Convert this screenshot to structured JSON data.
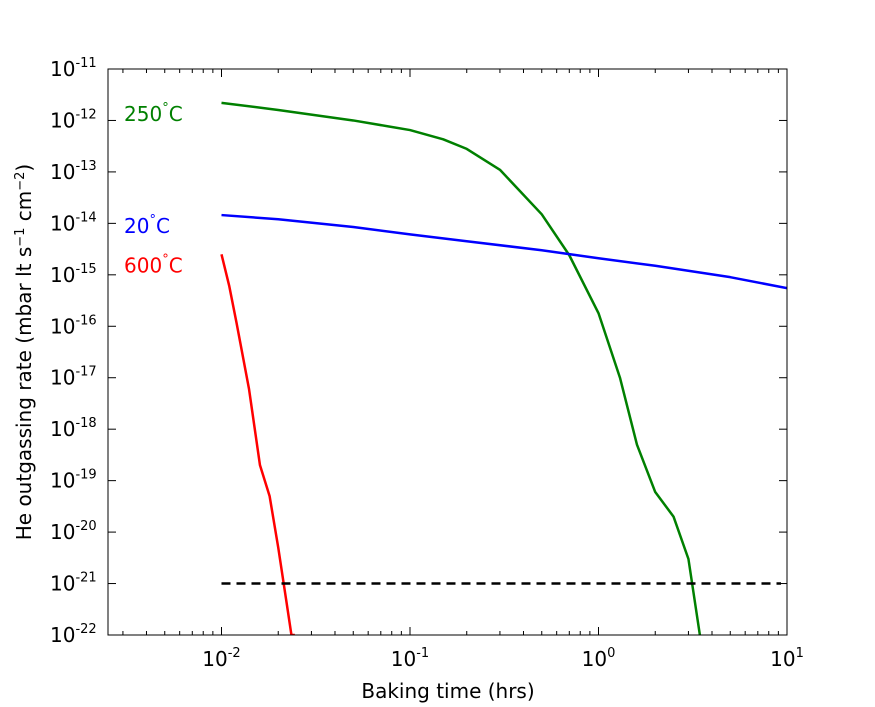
{
  "chart_data": {
    "type": "line",
    "xlabel": "Baking time (hrs)",
    "ylabel_main": "He outgassing rate (mbar lt s",
    "ylabel_sup1": "−1",
    "ylabel_mid": " cm",
    "ylabel_sup2": "−2",
    "ylabel_end": ")",
    "x_scale": "log",
    "y_scale": "log",
    "xlim": [
      0.0025,
      10
    ],
    "ylim": [
      1e-22,
      1e-11
    ],
    "grid": false,
    "x_ticks": [
      {
        "base": "10",
        "exp": "-2",
        "value": 0.01
      },
      {
        "base": "10",
        "exp": "-1",
        "value": 0.1
      },
      {
        "base": "10",
        "exp": "0",
        "value": 1
      },
      {
        "base": "10",
        "exp": "1",
        "value": 10
      }
    ],
    "y_ticks": [
      {
        "base": "10",
        "exp": "-11",
        "value": 1e-11
      },
      {
        "base": "10",
        "exp": "-12",
        "value": 1e-12
      },
      {
        "base": "10",
        "exp": "-13",
        "value": 1e-13
      },
      {
        "base": "10",
        "exp": "-14",
        "value": 1e-14
      },
      {
        "base": "10",
        "exp": "-15",
        "value": 1e-15
      },
      {
        "base": "10",
        "exp": "-16",
        "value": 1e-16
      },
      {
        "base": "10",
        "exp": "-17",
        "value": 1e-17
      },
      {
        "base": "10",
        "exp": "-18",
        "value": 1e-18
      },
      {
        "base": "10",
        "exp": "-19",
        "value": 1e-19
      },
      {
        "base": "10",
        "exp": "-20",
        "value": 1e-20
      },
      {
        "base": "10",
        "exp": "-21",
        "value": 1e-21
      },
      {
        "base": "10",
        "exp": "-22",
        "value": 1e-22
      }
    ],
    "series": [
      {
        "name": "250°C",
        "color": "#008000",
        "x": [
          0.01,
          0.02,
          0.05,
          0.1,
          0.15,
          0.2,
          0.3,
          0.5,
          0.7,
          1.0,
          1.3,
          1.6,
          2.0,
          2.5,
          3.0,
          3.45
        ],
        "y": [
          2.2e-12,
          1.6e-12,
          1e-12,
          6.5e-13,
          4.3e-13,
          2.8e-13,
          1.1e-13,
          1.5e-14,
          2.4e-15,
          1.8e-16,
          1e-17,
          5e-19,
          6e-20,
          2e-20,
          3e-21,
          1e-22
        ]
      },
      {
        "name": "20°C",
        "color": "#0000ff",
        "x": [
          0.01,
          0.02,
          0.05,
          0.1,
          0.2,
          0.5,
          1,
          2,
          5,
          10
        ],
        "y": [
          1.45e-14,
          1.2e-14,
          8.5e-15,
          6.1e-15,
          4.5e-15,
          3e-15,
          2.1e-15,
          1.5e-15,
          9e-16,
          5.5e-16
        ]
      },
      {
        "name": "600°C",
        "color": "#ff0000",
        "x": [
          0.01,
          0.011,
          0.012,
          0.014,
          0.016,
          0.018,
          0.02,
          0.022,
          0.0235,
          0.0245
        ],
        "y": [
          2.5e-15,
          6e-16,
          1.2e-16,
          6e-18,
          2e-19,
          5e-20,
          5e-21,
          5e-22,
          1e-22,
          1e-22
        ]
      }
    ],
    "reference_line": {
      "style": "dashed",
      "color": "#000000",
      "y": 1e-21,
      "x_range": [
        0.01,
        10
      ]
    },
    "annotations": [
      {
        "text": "250",
        "deg": "°",
        "unit": "C",
        "color": "#008000",
        "series": "250°C"
      },
      {
        "text": "20",
        "deg": "°",
        "unit": "C",
        "color": "#0000ff",
        "series": "20°C"
      },
      {
        "text": "600",
        "deg": "°",
        "unit": "C",
        "color": "#ff0000",
        "series": "600°C"
      }
    ]
  }
}
